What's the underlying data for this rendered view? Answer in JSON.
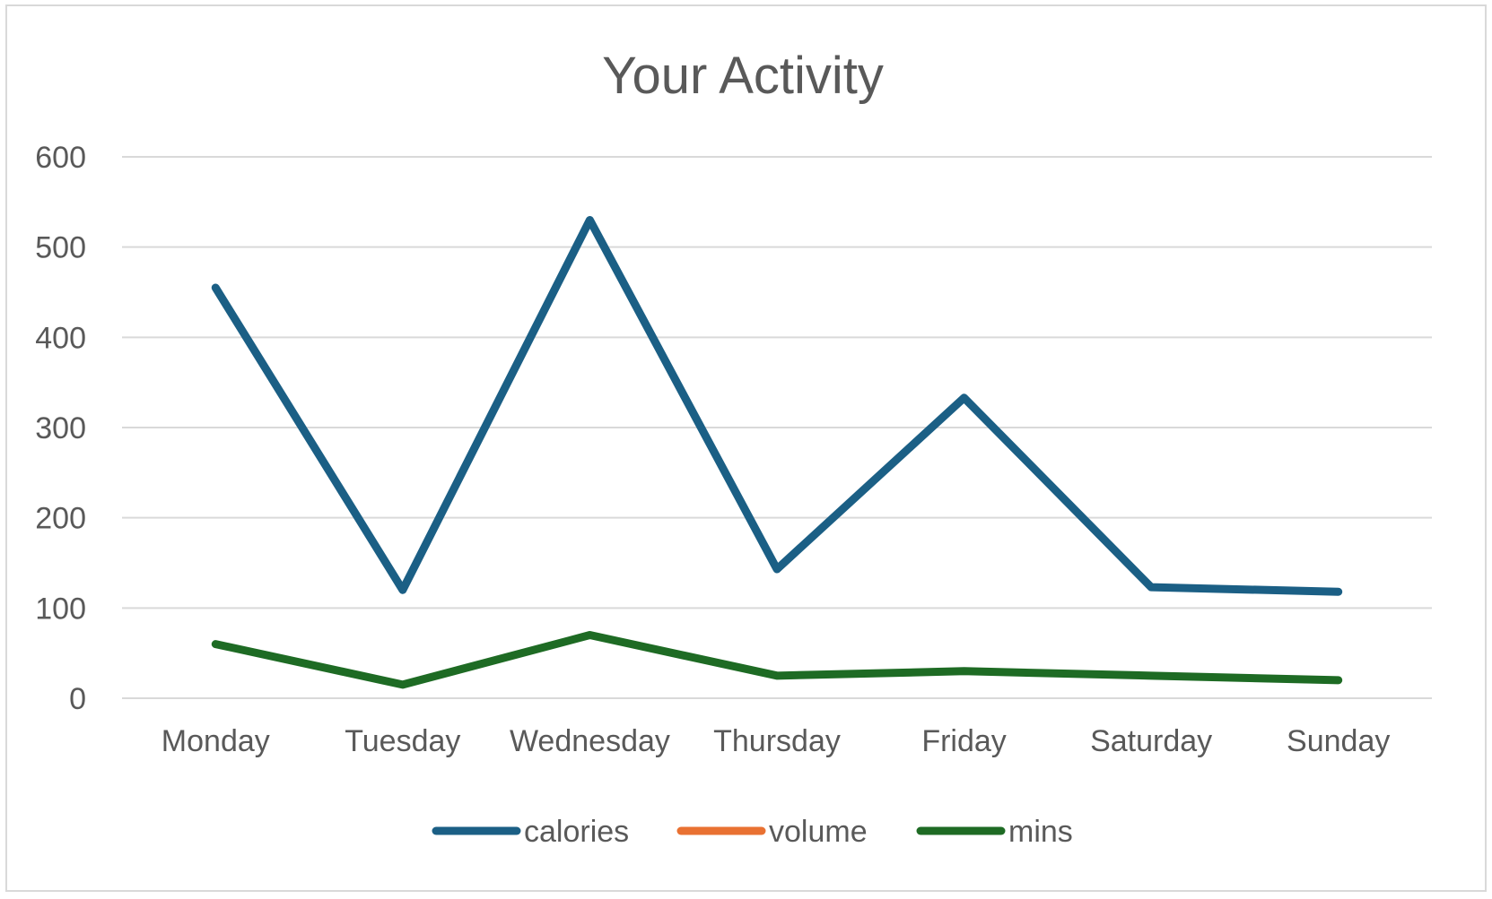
{
  "chart_data": {
    "type": "line",
    "title": "Your Activity",
    "xlabel": "",
    "ylabel": "",
    "categories": [
      "Monday",
      "Tuesday",
      "Wednesday",
      "Thursday",
      "Friday",
      "Saturday",
      "Sunday"
    ],
    "ylim": [
      0,
      600
    ],
    "yticks": [
      0,
      100,
      200,
      300,
      400,
      500,
      600
    ],
    "ytick_labels": [
      "0",
      "100",
      "200",
      "300",
      "400",
      "500",
      "600"
    ],
    "grid": true,
    "legend_position": "bottom",
    "series": [
      {
        "name": "calories",
        "color": "#1b5f85",
        "values": [
          455,
          120,
          530,
          143,
          333,
          123,
          118
        ]
      },
      {
        "name": "volume",
        "color": "#e97132",
        "values": [
          null,
          null,
          null,
          null,
          null,
          null,
          null
        ]
      },
      {
        "name": "mins",
        "color": "#1e6b24",
        "values": [
          60,
          15,
          70,
          25,
          30,
          25,
          20
        ]
      }
    ]
  }
}
